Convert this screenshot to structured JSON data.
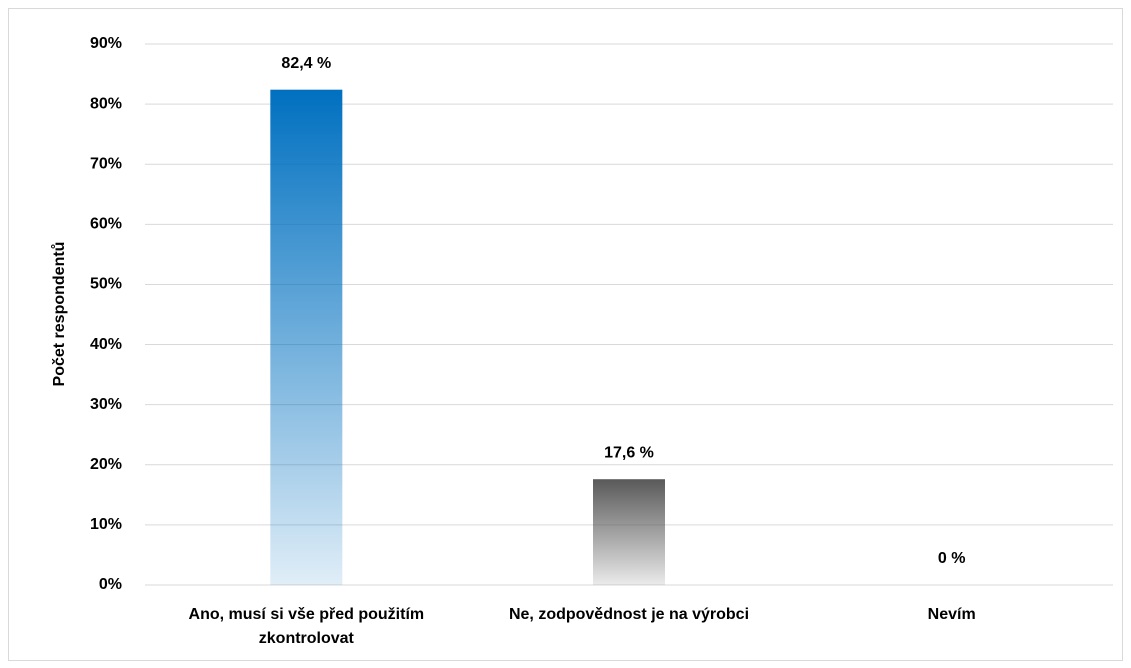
{
  "chart_data": {
    "type": "bar",
    "y_label": "Počet respondentů",
    "categories": [
      "Ano, musí si vše před použitím zkontrolovat",
      "Ne, zodpovědnost je na výrobci",
      "Nevím"
    ],
    "values": [
      82.4,
      17.6,
      0
    ],
    "value_labels": [
      "82,4 %",
      "17,6 %",
      "0 %"
    ],
    "colors": [
      "#0070c0",
      "#595959",
      "#595959"
    ],
    "ylim": [
      0,
      90
    ],
    "yticks": [
      {
        "value": 0,
        "label": "0%"
      },
      {
        "value": 10,
        "label": "10%"
      },
      {
        "value": 20,
        "label": "20%"
      },
      {
        "value": 30,
        "label": "30%"
      },
      {
        "value": 40,
        "label": "40%"
      },
      {
        "value": 50,
        "label": "50%"
      },
      {
        "value": 60,
        "label": "60%"
      },
      {
        "value": 70,
        "label": "70%"
      },
      {
        "value": 80,
        "label": "80%"
      },
      {
        "value": 90,
        "label": "90%"
      }
    ],
    "grid": true
  }
}
